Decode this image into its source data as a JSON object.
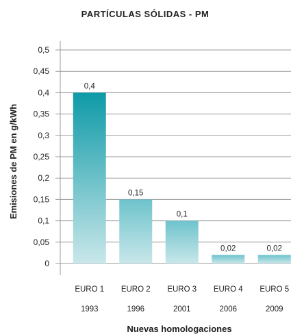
{
  "chart_data": {
    "type": "bar",
    "title": "PARTÍCULAS SÓLIDAS  - PM",
    "xlabel": "Nuevas homologaciones",
    "ylabel": "Emisiones de PM en g/kWh",
    "categories": [
      "EURO 1",
      "EURO 2",
      "EURO 3",
      "EURO 4",
      "EURO 5"
    ],
    "years": [
      "1993",
      "1996",
      "2001",
      "2006",
      "2009"
    ],
    "values": [
      0.4,
      0.15,
      0.1,
      0.02,
      0.02
    ],
    "data_labels": [
      "0,4",
      "0,15",
      "0,1",
      "0,02",
      "0,02"
    ],
    "ylim": [
      0,
      0.5
    ],
    "yticks": [
      0,
      0.05,
      0.1,
      0.15,
      0.2,
      0.25,
      0.3,
      0.35,
      0.4,
      0.45,
      0.5
    ],
    "ytick_labels": [
      "0",
      "0,05",
      "0,1",
      "0,15",
      "0,2",
      "0,25",
      "0,3",
      "0,35",
      "0,4",
      "0,45",
      "0,5"
    ],
    "grid": true,
    "colors": {
      "bar_top_dark": "#0e9aa7",
      "bar_top_light": "#6ec3cc",
      "bar_bottom": "#c9e7ea",
      "grid": "#9a9a9a"
    }
  }
}
